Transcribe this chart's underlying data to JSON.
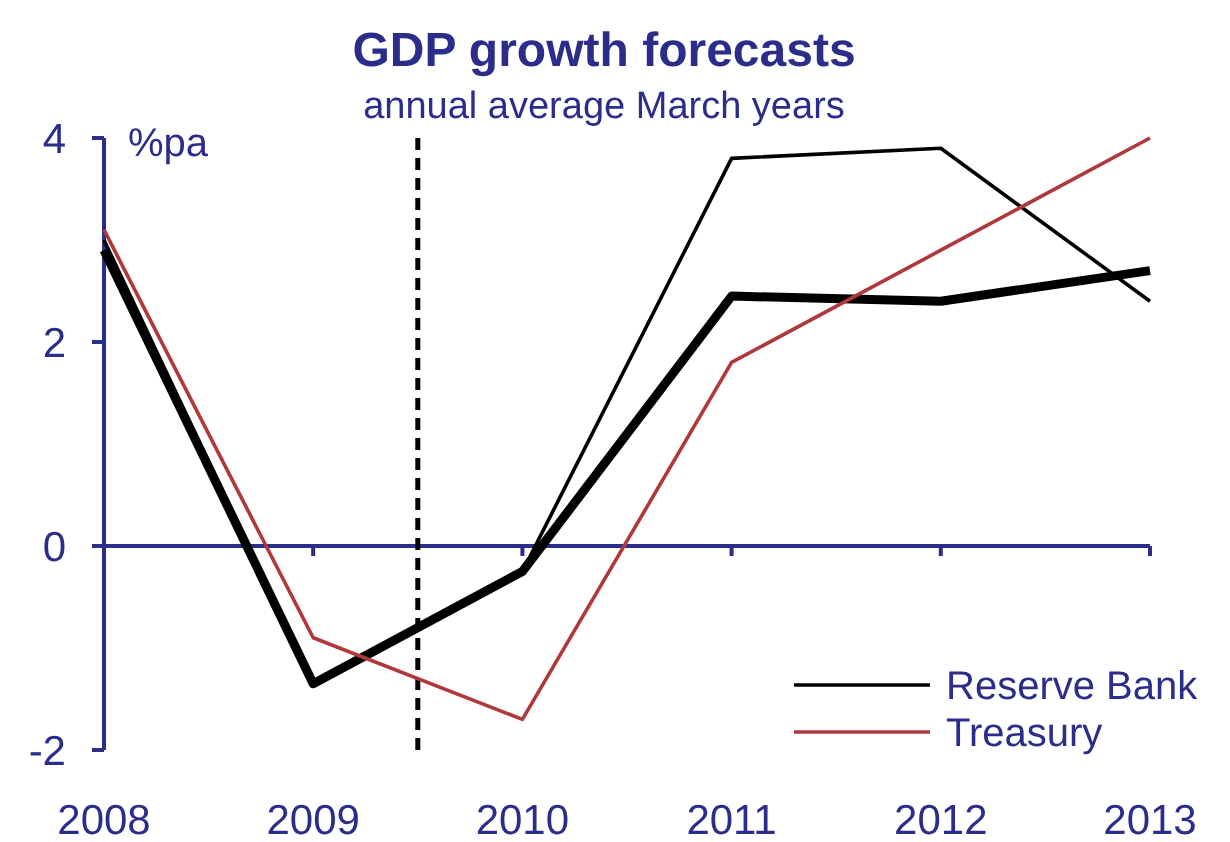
{
  "chart_data": {
    "type": "line",
    "title": "GDP growth forecasts",
    "subtitle": "annual average March years",
    "ylabel": "%pa",
    "x": [
      2008,
      2009,
      2010,
      2011,
      2012,
      2013
    ],
    "xlim": [
      2008,
      2013
    ],
    "xticks": [
      2008,
      2009,
      2010,
      2011,
      2012,
      2013
    ],
    "ylim": [
      -2,
      4
    ],
    "yticks": [
      -2,
      0,
      2,
      4
    ],
    "series": [
      {
        "color": "#000000",
        "values": [
          2.9,
          -1.35,
          -0.25,
          2.45,
          2.4,
          2.7
        ]
      },
      {
        "name": "Reserve Bank",
        "color": "#000000",
        "values": [
          3.0,
          -1.35,
          -0.25,
          3.8,
          3.9,
          2.4
        ]
      },
      {
        "name": "Treasury",
        "color": "#b0383a",
        "values": [
          3.1,
          -0.9,
          -1.7,
          1.8,
          2.9,
          4.0
        ]
      }
    ],
    "ref_lines": [
      {
        "axis": "y",
        "value": 0,
        "color": "#2b2d8a",
        "line_style": "solid"
      },
      {
        "axis": "x",
        "value": 2009.5,
        "color": "#000000",
        "line_style": "dashed"
      }
    ],
    "grid": false,
    "legend": "bottom right"
  }
}
